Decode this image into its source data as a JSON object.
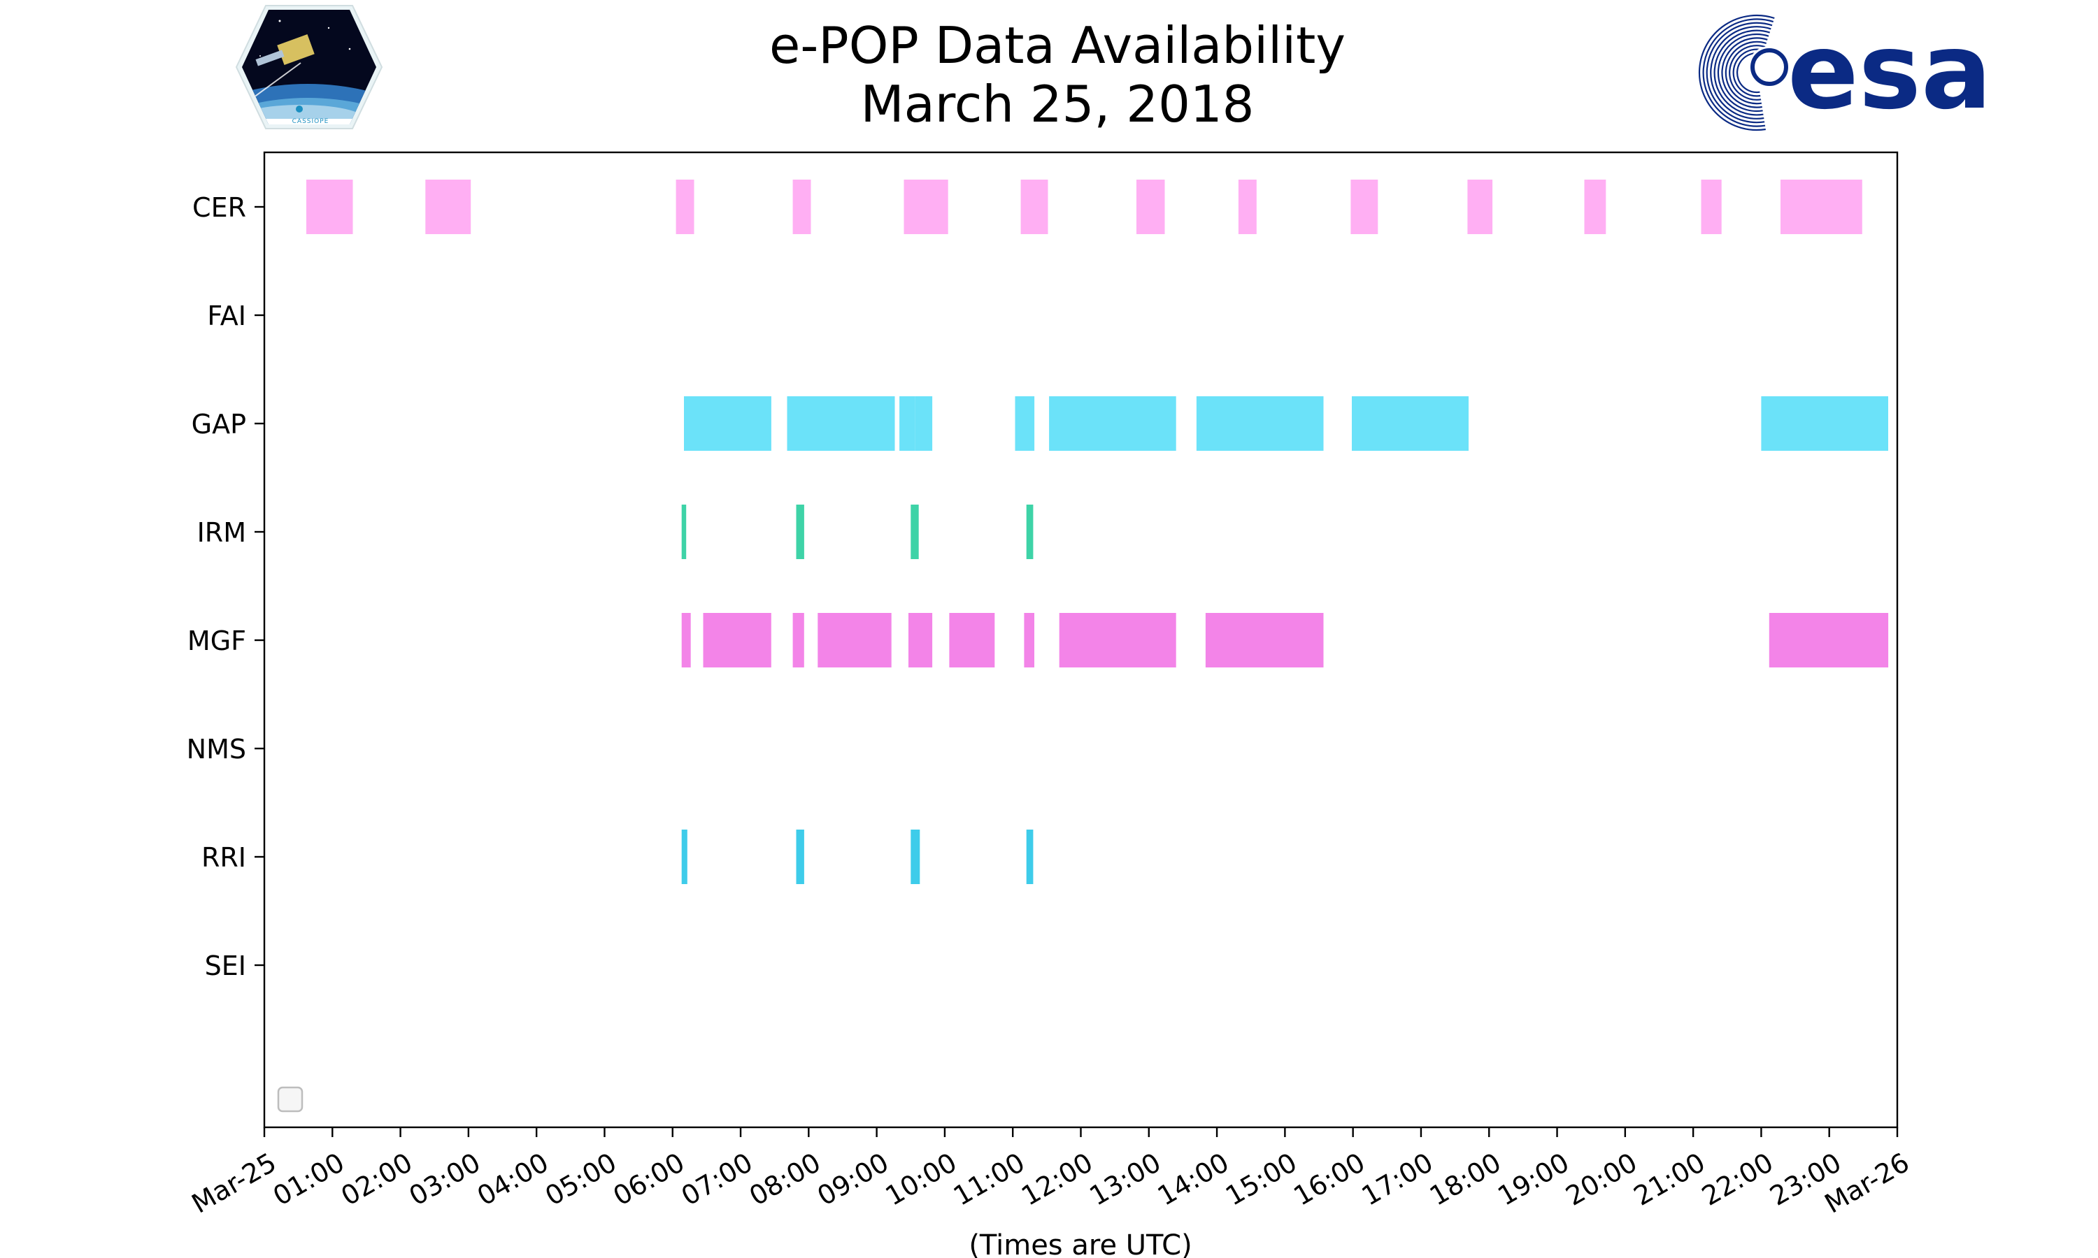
{
  "logos": {
    "left": {
      "name": "CASSIOPE",
      "text": "CASSIOPE"
    },
    "right": {
      "name": "esa",
      "text": "esa"
    }
  },
  "chart_data": {
    "type": "timeline",
    "title": [
      "e-POP Data Availability",
      "March 25, 2018"
    ],
    "xlabel": "(Times are UTC)",
    "xlim": [
      "2018-03-25T00:00",
      "2018-03-26T00:00"
    ],
    "x_tick_labels": [
      "Mar-25",
      "01:00",
      "02:00",
      "03:00",
      "04:00",
      "05:00",
      "06:00",
      "07:00",
      "08:00",
      "09:00",
      "10:00",
      "11:00",
      "12:00",
      "13:00",
      "14:00",
      "15:00",
      "16:00",
      "17:00",
      "18:00",
      "19:00",
      "20:00",
      "21:00",
      "22:00",
      "23:00",
      "Mar-26"
    ],
    "categories": [
      "CER",
      "FAI",
      "GAP",
      "IRM",
      "MGF",
      "NMS",
      "RRI",
      "SEI"
    ],
    "grid": false,
    "legend": {
      "placement": "lower-left",
      "entries": []
    },
    "series": [
      {
        "instrument": "CER",
        "color": "#ffa8f2",
        "intervals": [
          [
            "00:37",
            "01:18"
          ],
          [
            "02:22",
            "03:02"
          ],
          [
            "06:03",
            "06:19"
          ],
          [
            "07:46",
            "08:02"
          ],
          [
            "09:24",
            "10:03"
          ],
          [
            "11:07",
            "11:31"
          ],
          [
            "12:49",
            "13:14"
          ],
          [
            "14:19",
            "14:35"
          ],
          [
            "15:58",
            "16:22"
          ],
          [
            "17:41",
            "18:03"
          ],
          [
            "19:24",
            "19:43"
          ],
          [
            "21:07",
            "21:25"
          ],
          [
            "22:17",
            "23:29"
          ]
        ]
      },
      {
        "instrument": "FAI",
        "color": "#ff99ee",
        "intervals": []
      },
      {
        "instrument": "GAP",
        "color": "#5ee0f8",
        "intervals": [
          [
            "06:10",
            "07:27"
          ],
          [
            "07:41",
            "09:16"
          ],
          [
            "09:20",
            "09:34"
          ],
          [
            "09:34",
            "09:49"
          ],
          [
            "11:02",
            "11:19"
          ],
          [
            "11:32",
            "13:24"
          ],
          [
            "13:42",
            "15:34"
          ],
          [
            "15:59",
            "17:42"
          ],
          [
            "22:00",
            "23:52"
          ]
        ]
      },
      {
        "instrument": "IRM",
        "color": "#2ecfa0",
        "intervals": [
          [
            "06:08",
            "06:12"
          ],
          [
            "07:49",
            "07:56"
          ],
          [
            "09:30",
            "09:37"
          ],
          [
            "11:12",
            "11:18"
          ]
        ]
      },
      {
        "instrument": "MGF",
        "color": "#f27ae6",
        "intervals": [
          [
            "06:08",
            "06:16"
          ],
          [
            "06:27",
            "07:27"
          ],
          [
            "07:46",
            "07:56"
          ],
          [
            "08:08",
            "09:13"
          ],
          [
            "09:28",
            "09:49"
          ],
          [
            "10:04",
            "10:44"
          ],
          [
            "11:10",
            "11:19"
          ],
          [
            "11:41",
            "13:24"
          ],
          [
            "13:50",
            "15:34"
          ],
          [
            "22:07",
            "23:52"
          ]
        ]
      },
      {
        "instrument": "NMS",
        "color": "#5ee0f8",
        "intervals": []
      },
      {
        "instrument": "RRI",
        "color": "#2ec8e8",
        "intervals": [
          [
            "06:08",
            "06:13"
          ],
          [
            "07:49",
            "07:56"
          ],
          [
            "09:30",
            "09:38"
          ],
          [
            "11:12",
            "11:18"
          ]
        ]
      },
      {
        "instrument": "SEI",
        "color": "#5ee0f8",
        "intervals": []
      }
    ]
  }
}
